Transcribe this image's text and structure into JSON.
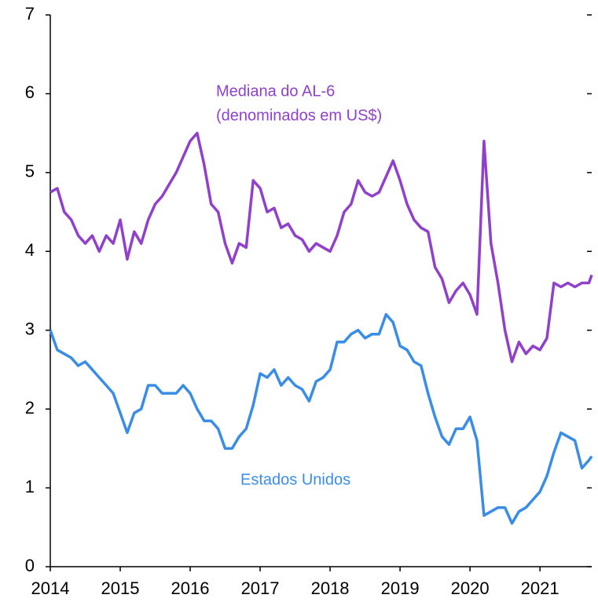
{
  "chart_data": {
    "type": "line",
    "x": [
      2014,
      2014.1,
      2014.2,
      2014.3,
      2014.4,
      2014.5,
      2014.6,
      2014.7,
      2014.8,
      2014.9,
      2015,
      2015.1,
      2015.2,
      2015.3,
      2015.4,
      2015.5,
      2015.6,
      2015.7,
      2015.8,
      2015.9,
      2016,
      2016.1,
      2016.2,
      2016.3,
      2016.4,
      2016.5,
      2016.6,
      2016.7,
      2016.8,
      2016.9,
      2017,
      2017.1,
      2017.2,
      2017.3,
      2017.4,
      2017.5,
      2017.6,
      2017.7,
      2017.8,
      2017.9,
      2018,
      2018.1,
      2018.2,
      2018.3,
      2018.4,
      2018.5,
      2018.6,
      2018.7,
      2018.8,
      2018.9,
      2019,
      2019.1,
      2019.2,
      2019.3,
      2019.4,
      2019.5,
      2019.6,
      2019.7,
      2019.8,
      2019.9,
      2020,
      2020.1,
      2020.2,
      2020.3,
      2020.4,
      2020.5,
      2020.6,
      2020.7,
      2020.8,
      2020.9,
      2021,
      2021.1,
      2021.2,
      2021.3,
      2021.4,
      2021.5,
      2021.6,
      2021.7,
      2021.74
    ],
    "series": [
      {
        "color": "#9140cc",
        "values": [
          4.75,
          4.8,
          4.5,
          4.4,
          4.2,
          4.1,
          4.2,
          4.0,
          4.2,
          4.1,
          4.4,
          3.9,
          4.25,
          4.1,
          4.4,
          4.6,
          4.7,
          4.85,
          5.0,
          5.2,
          5.4,
          5.5,
          5.1,
          4.6,
          4.5,
          4.1,
          3.85,
          4.1,
          4.05,
          4.9,
          4.8,
          4.5,
          4.55,
          4.3,
          4.35,
          4.2,
          4.15,
          4.0,
          4.1,
          4.05,
          4.0,
          4.2,
          4.5,
          4.6,
          4.9,
          4.75,
          4.7,
          4.75,
          4.95,
          5.15,
          4.9,
          4.6,
          4.4,
          4.3,
          4.25,
          3.8,
          3.65,
          3.35,
          3.5,
          3.6,
          3.45,
          3.2,
          5.4,
          4.1,
          3.6,
          3.0,
          2.6,
          2.85,
          2.7,
          2.8,
          2.75,
          2.9,
          3.6,
          3.55,
          3.6,
          3.55,
          3.6,
          3.6,
          3.7
        ]
      },
      {
        "color": "#3a8de6",
        "values": [
          3.0,
          2.75,
          2.7,
          2.65,
          2.55,
          2.6,
          2.5,
          2.4,
          2.3,
          2.2,
          1.95,
          1.7,
          1.95,
          2.0,
          2.3,
          2.3,
          2.2,
          2.2,
          2.2,
          2.3,
          2.2,
          2.0,
          1.85,
          1.85,
          1.75,
          1.5,
          1.5,
          1.65,
          1.75,
          2.05,
          2.45,
          2.4,
          2.5,
          2.3,
          2.4,
          2.3,
          2.25,
          2.1,
          2.35,
          2.4,
          2.5,
          2.85,
          2.85,
          2.95,
          3.0,
          2.9,
          2.95,
          2.95,
          3.2,
          3.1,
          2.8,
          2.75,
          2.6,
          2.55,
          2.2,
          1.9,
          1.65,
          1.55,
          1.75,
          1.75,
          1.9,
          1.6,
          0.65,
          0.7,
          0.75,
          0.75,
          0.55,
          0.7,
          0.75,
          0.85,
          0.95,
          1.15,
          1.45,
          1.7,
          1.65,
          1.6,
          1.25,
          1.35,
          1.4
        ]
      }
    ],
    "annotations": [
      "Mediana do AL-6",
      "(denominados em US$)",
      "Estados Unidos"
    ],
    "xlim": [
      2014,
      2021.74
    ],
    "xticks": [
      2014,
      2015,
      2016,
      2017,
      2018,
      2019,
      2020,
      2021
    ],
    "ylim": [
      0,
      7
    ],
    "yticks": [
      0,
      1,
      2,
      3,
      4,
      5,
      6,
      7
    ]
  }
}
